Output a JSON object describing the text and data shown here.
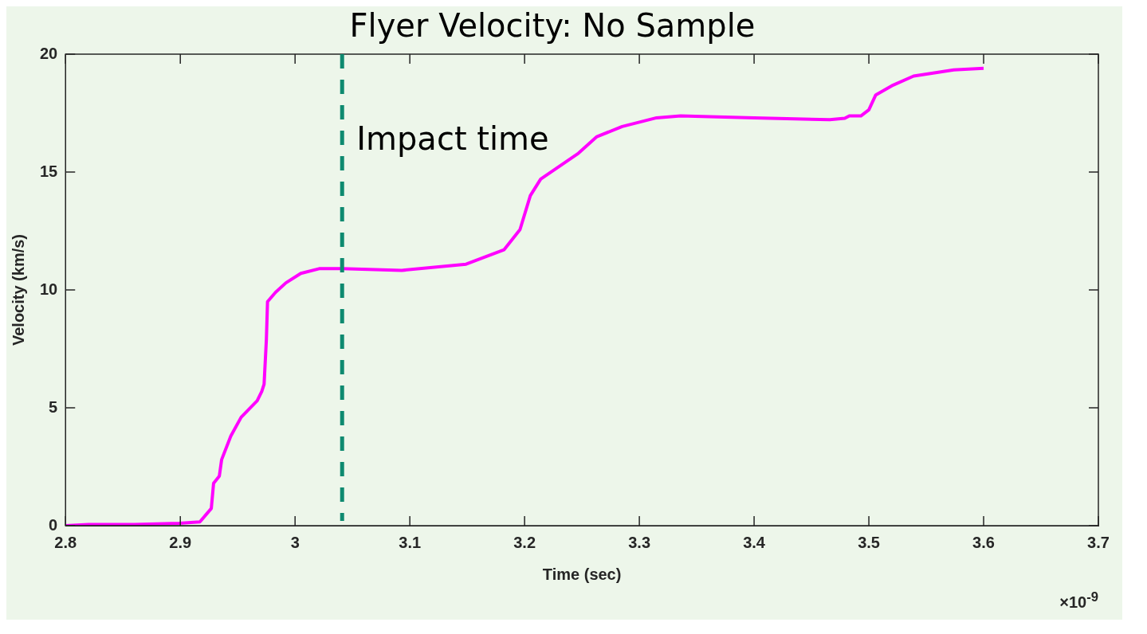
{
  "chart_data": {
    "type": "line",
    "title": "Flyer Velocity: No Sample",
    "xlabel": "Time (sec)",
    "ylabel": "Velocity (km/s)",
    "x": [
      2.8,
      2.82,
      2.86,
      2.899,
      2.917,
      2.927,
      2.929,
      2.934,
      2.936,
      2.944,
      2.953,
      2.967,
      2.971,
      2.973,
      2.975,
      2.976,
      2.983,
      2.992,
      3.005,
      3.021,
      3.041,
      3.093,
      3.149,
      3.182,
      3.196,
      3.205,
      3.214,
      3.247,
      3.263,
      3.285,
      3.315,
      3.336,
      3.4,
      3.466,
      3.479,
      3.483,
      3.493,
      3.5,
      3.506,
      3.52,
      3.539,
      3.574,
      3.6
    ],
    "series": [
      {
        "color": "#ff00ff",
        "values": [
          0,
          0.05,
          0.05,
          0.1,
          0.16,
          0.73,
          1.8,
          2.1,
          2.8,
          3.8,
          4.6,
          5.3,
          5.7,
          6.0,
          7.9,
          9.5,
          9.9,
          10.3,
          10.7,
          10.9,
          10.9,
          10.83,
          11.09,
          11.7,
          12.56,
          14.0,
          14.7,
          15.8,
          16.5,
          16.93,
          17.3,
          17.38,
          17.3,
          17.22,
          17.28,
          17.38,
          17.38,
          17.64,
          18.27,
          18.66,
          19.07,
          19.33,
          19.4
        ]
      }
    ],
    "xlim": [
      2.8,
      3.7
    ],
    "xticks": [
      2.8,
      2.9,
      3,
      3.1,
      3.2,
      3.3,
      3.4,
      3.5,
      3.6,
      3.7
    ],
    "ylim": [
      0,
      20
    ],
    "yticks": [
      0,
      5,
      10,
      15,
      20
    ],
    "ref_lines": [
      {
        "axis": "x",
        "value": 3.041,
        "label": "Impact time",
        "color": "#0e8a70",
        "line_style": "dashed"
      }
    ],
    "annotations": [
      "×10$^{-9}$"
    ],
    "grid": false,
    "legend": false,
    "marker": "none",
    "line_style": "solid"
  }
}
